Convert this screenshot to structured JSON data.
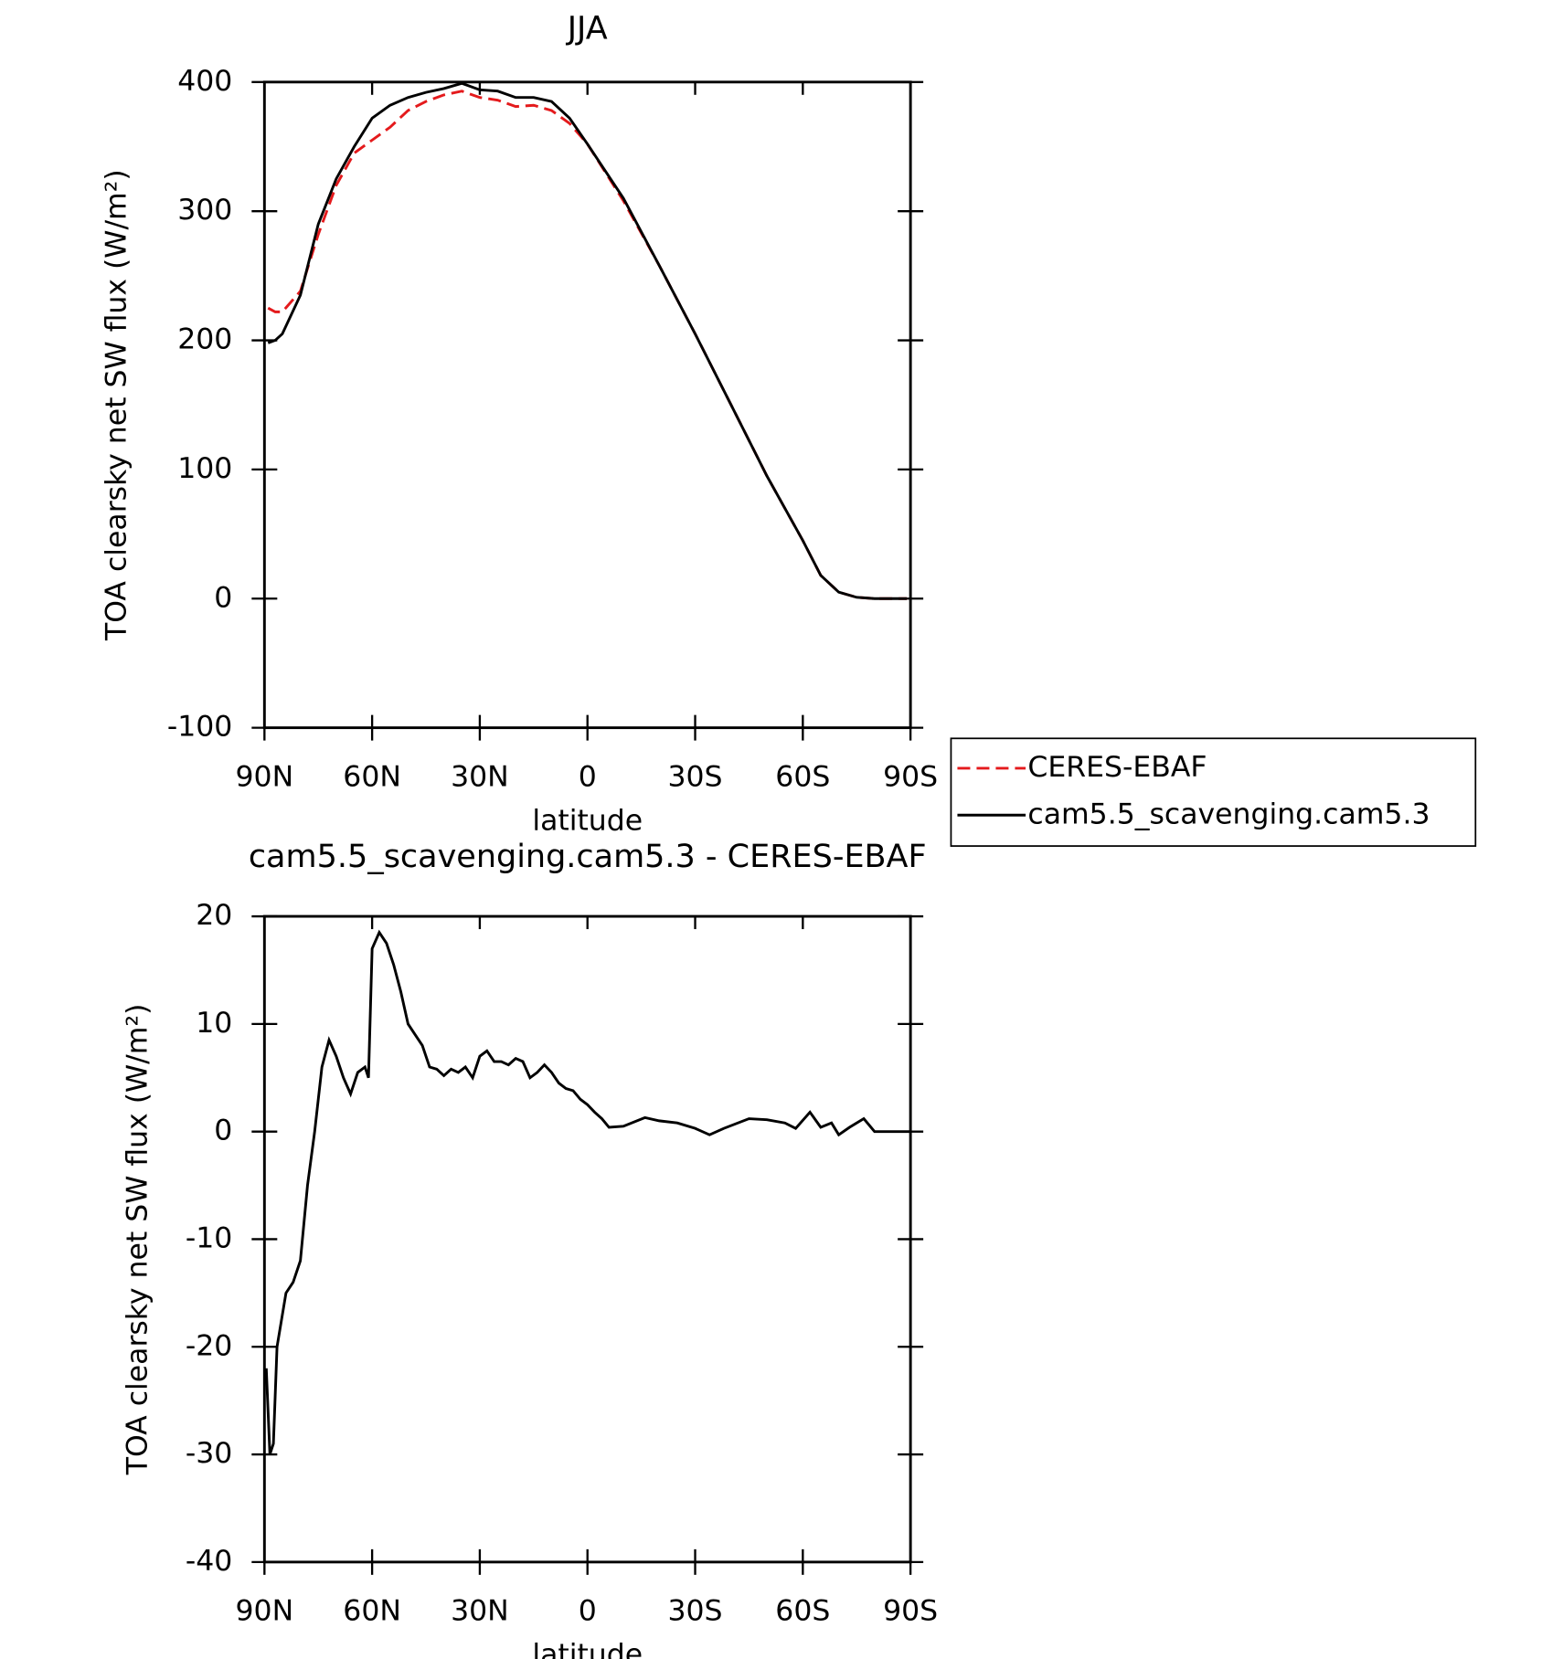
{
  "chart_data": [
    {
      "type": "line",
      "title": "JJA",
      "xlabel": "latitude",
      "ylabel": "TOA clearsky net SW flux (W/m²)",
      "x": [
        89,
        87,
        85,
        80,
        75,
        70,
        65,
        60,
        55,
        50,
        45,
        40,
        35,
        30,
        25,
        20,
        15,
        10,
        5,
        0,
        -10,
        -20,
        -30,
        -40,
        -50,
        -60,
        -65,
        -70,
        -75,
        -80,
        -85,
        -89
      ],
      "series": [
        {
          "name": "CERES-EBAF",
          "color": "#e41a1c",
          "dash": true,
          "values": [
            225,
            222,
            222,
            238,
            282,
            320,
            345,
            355,
            365,
            378,
            385,
            390,
            393,
            388,
            386,
            381,
            382,
            378,
            368,
            352,
            308,
            258,
            205,
            150,
            95,
            45,
            18,
            5,
            1,
            0,
            0,
            0
          ]
        },
        {
          "name": "cam5.5_scavenging.cam5.3",
          "color": "#000000",
          "dash": false,
          "values": [
            198,
            200,
            205,
            235,
            290,
            325,
            350,
            372,
            382,
            388,
            392,
            395,
            399,
            394,
            393,
            388,
            388,
            385,
            372,
            352,
            310,
            258,
            205,
            150,
            95,
            45,
            18,
            5,
            1,
            0,
            0,
            0
          ]
        }
      ],
      "xlim": [
        90,
        -90
      ],
      "ylim": [
        -100,
        400
      ],
      "xticks": [
        {
          "value": 90,
          "label": "90N"
        },
        {
          "value": 60,
          "label": "60N"
        },
        {
          "value": 30,
          "label": "30N"
        },
        0,
        {
          "value": -30,
          "label": "30S"
        },
        {
          "value": -60,
          "label": "60S"
        },
        {
          "value": -90,
          "label": "90S"
        }
      ],
      "yticks": [
        -100,
        0,
        100,
        200,
        300,
        400
      ],
      "legend": "right"
    },
    {
      "type": "line",
      "title": "cam5.5_scavenging.cam5.3 - CERES-EBAF",
      "xlabel": "latitude",
      "ylabel": "TOA clearsky net SW flux (W/m²)",
      "x": [
        89.5,
        88.5,
        87.5,
        86.5,
        84,
        82,
        80,
        78,
        76,
        74,
        72,
        70,
        68,
        66,
        64,
        62,
        61,
        60,
        58,
        56,
        54,
        52,
        50,
        48,
        46,
        44,
        42,
        40,
        38,
        36,
        34,
        32,
        30,
        28,
        26,
        24,
        22,
        20,
        18,
        16,
        14,
        12,
        10,
        8,
        6,
        4,
        2,
        0,
        -2,
        -4,
        -6,
        -10,
        -16,
        -20,
        -25,
        -30,
        -34,
        -38,
        -45,
        -50,
        -55,
        -58,
        -62,
        -65,
        -68,
        -70,
        -73,
        -77,
        -80,
        -90
      ],
      "values": [
        -22,
        -30,
        -29,
        -20,
        -15,
        -14,
        -12,
        -5,
        0,
        6,
        8.5,
        7,
        5,
        3.5,
        5.5,
        6,
        5,
        17,
        18.5,
        17.5,
        15.5,
        13,
        10,
        9,
        8,
        6,
        5.8,
        5.2,
        5.8,
        5.5,
        6,
        5,
        7,
        7.5,
        6.5,
        6.5,
        6.2,
        6.8,
        6.5,
        5,
        5.5,
        6.2,
        5.5,
        4.5,
        4,
        3.8,
        3,
        2.5,
        1.8,
        1.2,
        0.4,
        0.5,
        1.3,
        1,
        0.8,
        0.3,
        -0.3,
        0.3,
        1.2,
        1.1,
        0.8,
        0.3,
        1.8,
        0.4,
        0.8,
        -0.3,
        0.4,
        1.2,
        0,
        0
      ],
      "color": "#000000",
      "xlim": [
        90,
        -90
      ],
      "ylim": [
        -40,
        20
      ],
      "xticks": [
        {
          "value": 90,
          "label": "90N"
        },
        {
          "value": 60,
          "label": "60N"
        },
        {
          "value": 30,
          "label": "30N"
        },
        0,
        {
          "value": -30,
          "label": "30S"
        },
        {
          "value": -60,
          "label": "60S"
        },
        {
          "value": -90,
          "label": "90S"
        }
      ],
      "yticks": [
        -40,
        -30,
        -20,
        -10,
        0,
        10,
        20
      ]
    }
  ]
}
